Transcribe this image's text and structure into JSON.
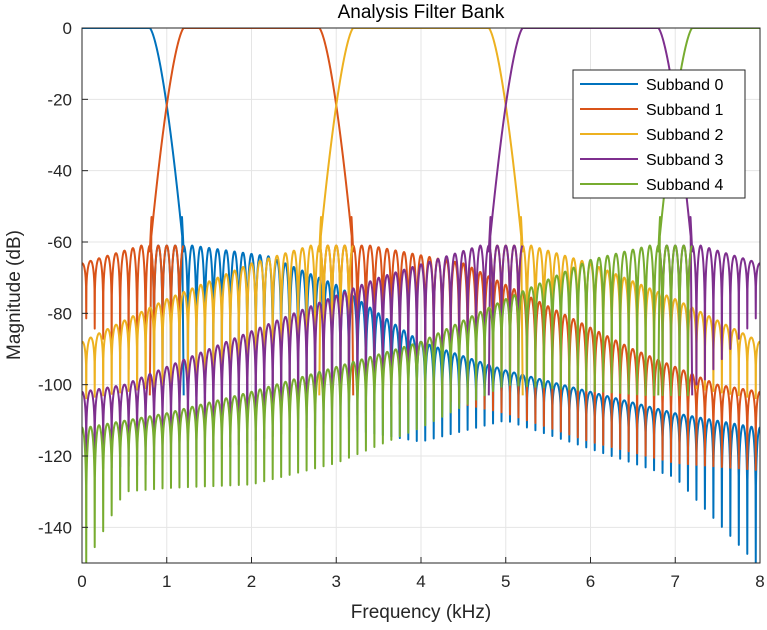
{
  "chart_data": {
    "type": "line",
    "title": "Analysis Filter Bank",
    "xlabel": "Frequency (kHz)",
    "ylabel": "Magnitude (dB)",
    "xlim": [
      0,
      8
    ],
    "ylim": [
      -150,
      0
    ],
    "xticks": [
      0,
      1,
      2,
      3,
      4,
      5,
      6,
      7,
      8
    ],
    "yticks": [
      0,
      -20,
      -40,
      -60,
      -80,
      -100,
      -120,
      -140
    ],
    "grid": true,
    "legend_position": "top-right",
    "series": [
      {
        "name": "Subband 0",
        "color": "#0072BD",
        "passband_khz": [
          0,
          0.8
        ],
        "edges": [
          {
            "f": 0.8,
            "side": "rise",
            "floor": -103,
            "sidelobe_peak": -53
          }
        ],
        "sidelobe_envelope": [
          [
            1.3,
            -61
          ],
          [
            2.2,
            -64
          ],
          [
            3.0,
            -72
          ],
          [
            4.0,
            -88
          ],
          [
            5.0,
            -96
          ],
          [
            6.0,
            -102
          ],
          [
            7.0,
            -108
          ],
          [
            7.95,
            -112
          ]
        ],
        "notch_floor": [
          [
            1.3,
            -103
          ],
          [
            3.0,
            -112
          ],
          [
            4.0,
            -116
          ],
          [
            5.0,
            -110
          ],
          [
            6.0,
            -118
          ],
          [
            7.0,
            -126
          ],
          [
            7.95,
            -150
          ]
        ]
      },
      {
        "name": "Subband 1",
        "color": "#D95319",
        "passband_khz": [
          1.2,
          2.8
        ],
        "edges": [
          {
            "f": 1.2,
            "side": "fall",
            "floor": -103,
            "sidelobe_peak": -53
          },
          {
            "f": 2.8,
            "side": "rise",
            "floor": -103,
            "sidelobe_peak": -53
          }
        ],
        "sidelobe_envelope": [
          [
            0.0,
            -66
          ],
          [
            0.7,
            -61
          ],
          [
            3.4,
            -61
          ],
          [
            4.5,
            -66
          ],
          [
            5.5,
            -78
          ],
          [
            6.5,
            -90
          ],
          [
            7.5,
            -100
          ],
          [
            8.0,
            -102
          ]
        ],
        "notch_floor": [
          [
            0.0,
            -80
          ],
          [
            0.7,
            -100
          ],
          [
            3.4,
            -100
          ],
          [
            5.0,
            -108
          ],
          [
            6.0,
            -116
          ],
          [
            7.0,
            -122
          ],
          [
            8.0,
            -124
          ]
        ]
      },
      {
        "name": "Subband 2",
        "color": "#EDB120",
        "passband_khz": [
          3.2,
          4.8
        ],
        "edges": [
          {
            "f": 3.2,
            "side": "fall",
            "floor": -103,
            "sidelobe_peak": -53
          },
          {
            "f": 4.8,
            "side": "rise",
            "floor": -103,
            "sidelobe_peak": -53
          }
        ],
        "sidelobe_envelope": [
          [
            0.0,
            -88
          ],
          [
            1.0,
            -76
          ],
          [
            2.0,
            -66
          ],
          [
            2.7,
            -61
          ],
          [
            5.3,
            -61
          ],
          [
            6.0,
            -66
          ],
          [
            7.0,
            -76
          ],
          [
            8.0,
            -88
          ]
        ],
        "notch_floor": [
          [
            0.0,
            -104
          ],
          [
            1.0,
            -100
          ],
          [
            2.7,
            -100
          ],
          [
            5.3,
            -100
          ],
          [
            7.0,
            -100
          ],
          [
            8.0,
            -104
          ]
        ]
      },
      {
        "name": "Subband 3",
        "color": "#7E2F8E",
        "passband_khz": [
          5.2,
          6.8
        ],
        "edges": [
          {
            "f": 5.2,
            "side": "fall",
            "floor": -103,
            "sidelobe_peak": -53
          },
          {
            "f": 6.8,
            "side": "rise",
            "floor": -103,
            "sidelobe_peak": -53
          }
        ],
        "sidelobe_envelope": [
          [
            0.0,
            -102
          ],
          [
            0.5,
            -100
          ],
          [
            1.5,
            -90
          ],
          [
            2.5,
            -80
          ],
          [
            3.5,
            -70
          ],
          [
            4.7,
            -61
          ],
          [
            7.3,
            -61
          ],
          [
            8.0,
            -66
          ]
        ],
        "notch_floor": [
          [
            0.0,
            -124
          ],
          [
            1.0,
            -122
          ],
          [
            2.0,
            -116
          ],
          [
            3.0,
            -110
          ],
          [
            4.0,
            -104
          ],
          [
            4.7,
            -100
          ],
          [
            7.3,
            -100
          ],
          [
            8.0,
            -80
          ]
        ]
      },
      {
        "name": "Subband 4",
        "color": "#77AC30",
        "passband_khz": [
          7.2,
          8
        ],
        "edges": [
          {
            "f": 7.2,
            "side": "fall",
            "floor": -103,
            "sidelobe_peak": -53
          }
        ],
        "sidelobe_envelope": [
          [
            0.05,
            -112
          ],
          [
            1.0,
            -108
          ],
          [
            2.0,
            -102
          ],
          [
            3.0,
            -95
          ],
          [
            4.0,
            -88
          ],
          [
            5.0,
            -76
          ],
          [
            6.0,
            -65
          ],
          [
            6.7,
            -61
          ]
        ],
        "notch_floor": [
          [
            0.05,
            -150
          ],
          [
            0.5,
            -130
          ],
          [
            1.0,
            -129
          ],
          [
            2.0,
            -128
          ],
          [
            3.0,
            -122
          ],
          [
            4.0,
            -112
          ],
          [
            5.0,
            -100
          ],
          [
            6.7,
            -103
          ]
        ]
      }
    ]
  }
}
